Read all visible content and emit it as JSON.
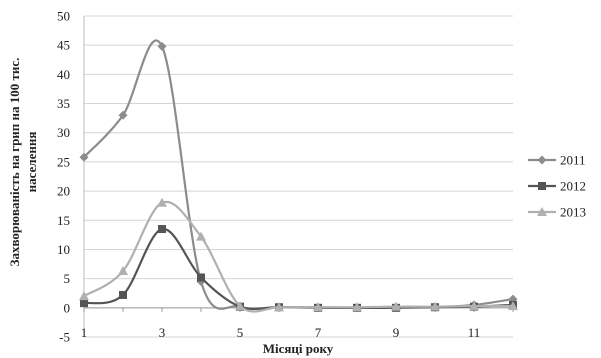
{
  "chart_data": {
    "type": "line",
    "xlabel": "Місяці року",
    "ylabel_line1": "Захворюваність на грип на 100 тис.",
    "ylabel_line2": "населення",
    "xlim": [
      1,
      12
    ],
    "ylim": [
      -5,
      50
    ],
    "y_ticks": [
      -5,
      0,
      5,
      10,
      15,
      20,
      25,
      30,
      35,
      40,
      45,
      50
    ],
    "x_ticks": [
      1,
      3,
      5,
      7,
      9,
      11
    ],
    "grid": true,
    "legend_position": "right",
    "x": [
      1,
      2,
      3,
      4,
      5,
      6,
      7,
      8,
      9,
      10,
      11,
      12
    ],
    "series": [
      {
        "name": "2011",
        "marker": "diamond",
        "color": "#8c8c8c",
        "values": [
          25.8,
          33.0,
          44.8,
          4.5,
          0.2,
          0.1,
          0.1,
          0.0,
          0.1,
          0.1,
          0.5,
          1.5
        ]
      },
      {
        "name": "2012",
        "marker": "square",
        "color": "#555555",
        "values": [
          0.8,
          2.2,
          13.5,
          5.2,
          0.2,
          0.1,
          0.0,
          0.0,
          0.0,
          0.1,
          0.2,
          0.5
        ]
      },
      {
        "name": "2013",
        "marker": "triangle",
        "color": "#b0b0b0",
        "values": [
          2.0,
          6.3,
          18.0,
          12.2,
          0.3,
          0.1,
          0.1,
          0.1,
          0.2,
          0.2,
          0.3,
          0.3
        ]
      }
    ]
  }
}
